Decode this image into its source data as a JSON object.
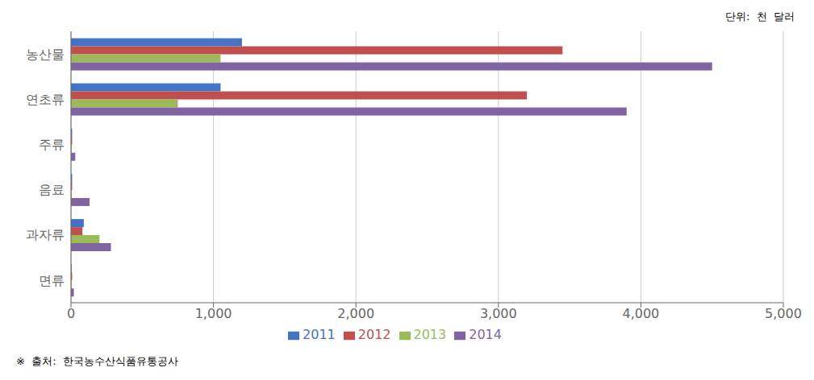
{
  "chart_data": {
    "type": "bar",
    "orientation": "horizontal",
    "categories": [
      "면류",
      "과자류",
      "음료",
      "주류",
      "연초류",
      "농산물"
    ],
    "series": [
      {
        "name": "2011",
        "color": "#4472C4",
        "values": [
          5,
          90,
          8,
          8,
          1050,
          1200
        ]
      },
      {
        "name": "2012",
        "color": "#C0504D",
        "values": [
          8,
          80,
          8,
          8,
          3200,
          3450
        ]
      },
      {
        "name": "2013",
        "color": "#9BBB59",
        "values": [
          5,
          200,
          5,
          5,
          750,
          1050
        ]
      },
      {
        "name": "2014",
        "color": "#8064A2",
        "values": [
          20,
          280,
          130,
          30,
          3900,
          4500
        ]
      }
    ],
    "xlim": [
      0,
      5000
    ],
    "xticks": [
      0,
      {
        "value": 1000,
        "label": "1,000"
      },
      {
        "value": 2000,
        "label": "2,000"
      },
      {
        "value": 3000,
        "label": "3,000"
      },
      {
        "value": 4000,
        "label": "4,000"
      },
      {
        "value": 5000,
        "label": "5,000"
      }
    ],
    "grid": true,
    "annotations": [
      "단위:  천  달러",
      "※  출처:  한국농수산식품유통공사"
    ]
  }
}
